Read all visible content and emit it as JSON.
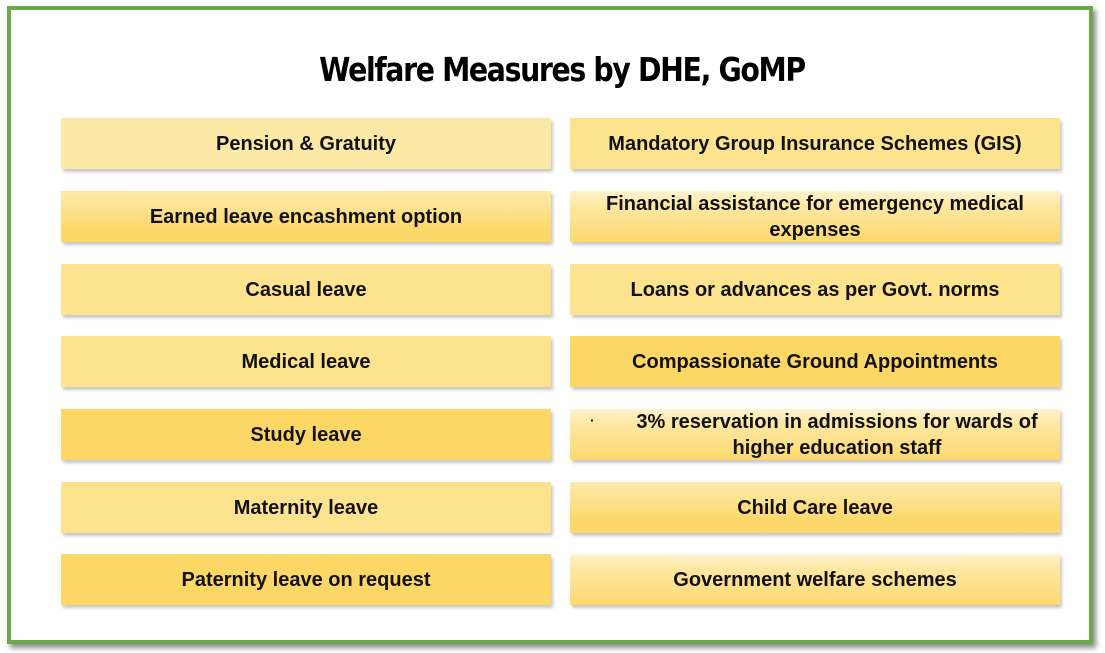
{
  "title": "Welfare Measures by DHE, GoMP",
  "left_items": [
    "Pension & Gratuity",
    "Earned leave encashment option",
    "Casual leave",
    "Medical leave",
    "Study leave",
    "Maternity leave",
    "Paternity leave on request"
  ],
  "right_items": [
    "Mandatory Group Insurance Schemes (GIS)",
    "Financial assistance for emergency medical expenses",
    "Loans or advances as per Govt. norms",
    "Compassionate Ground Appointments",
    "3% reservation in admissions for wards of higher education staff",
    "Child Care leave",
    "Government welfare schemes"
  ],
  "colors": {
    "border": "#6fa84a",
    "box_light": "#fde9a6",
    "box_mid": "#fde38e",
    "box_strong": "#fdd766"
  }
}
